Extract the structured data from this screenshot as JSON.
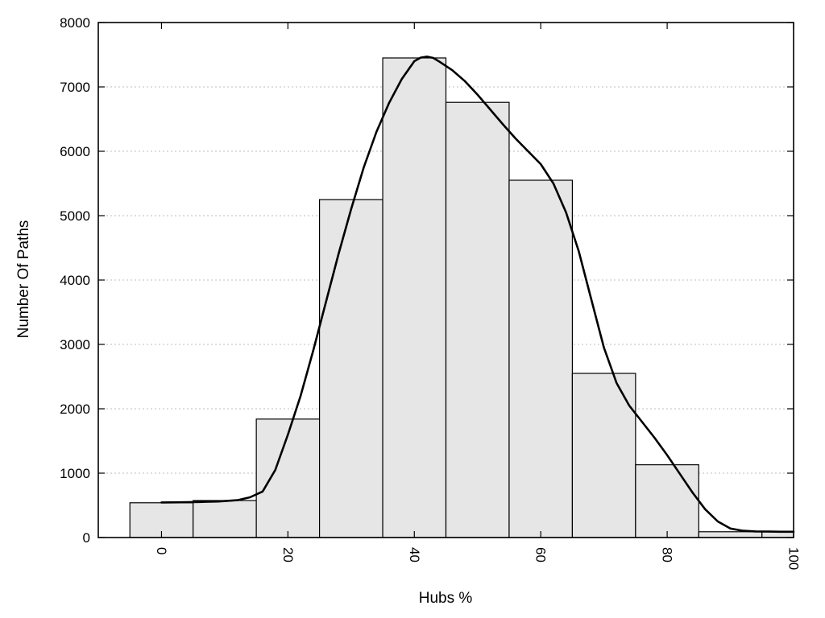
{
  "chart_data": {
    "type": "bar",
    "subtype": "histogram-with-density-curve",
    "title": "",
    "xlabel": "Hubs %",
    "ylabel": "Number Of Paths",
    "xlim": [
      -10,
      100
    ],
    "ylim": [
      0,
      8000
    ],
    "xticks": [
      0,
      20,
      40,
      60,
      80,
      100
    ],
    "yticks": [
      0,
      1000,
      2000,
      3000,
      4000,
      5000,
      6000,
      7000,
      8000
    ],
    "grid": "horizontal-dotted",
    "legend": "none",
    "colors": {
      "bar_fill": "#e6e6e6",
      "bar_stroke": "#000000",
      "curve": "#000000",
      "gridline": "#bdbdbd",
      "border": "#000000"
    },
    "bars": [
      {
        "x_start": -5,
        "x_end": 5,
        "value": 540
      },
      {
        "x_start": 5,
        "x_end": 15,
        "value": 575
      },
      {
        "x_start": 15,
        "x_end": 25,
        "value": 1840
      },
      {
        "x_start": 25,
        "x_end": 35,
        "value": 5250
      },
      {
        "x_start": 35,
        "x_end": 45,
        "value": 7450
      },
      {
        "x_start": 45,
        "x_end": 55,
        "value": 6760
      },
      {
        "x_start": 55,
        "x_end": 65,
        "value": 5550
      },
      {
        "x_start": 65,
        "x_end": 75,
        "value": 2550
      },
      {
        "x_start": 75,
        "x_end": 85,
        "value": 1130
      },
      {
        "x_start": 85,
        "x_end": 95,
        "value": 90
      },
      {
        "x_start": 95,
        "x_end": 105,
        "value": 90
      }
    ],
    "curve": [
      [
        0,
        545
      ],
      [
        3,
        548
      ],
      [
        6,
        553
      ],
      [
        9,
        560
      ],
      [
        12,
        580
      ],
      [
        14,
        625
      ],
      [
        16,
        715
      ],
      [
        18,
        1050
      ],
      [
        20,
        1600
      ],
      [
        22,
        2200
      ],
      [
        24,
        2900
      ],
      [
        26,
        3650
      ],
      [
        28,
        4400
      ],
      [
        30,
        5100
      ],
      [
        32,
        5750
      ],
      [
        34,
        6300
      ],
      [
        36,
        6750
      ],
      [
        38,
        7120
      ],
      [
        40,
        7400
      ],
      [
        41,
        7455
      ],
      [
        42,
        7470
      ],
      [
        43,
        7450
      ],
      [
        44,
        7390
      ],
      [
        46,
        7260
      ],
      [
        48,
        7090
      ],
      [
        50,
        6880
      ],
      [
        52,
        6650
      ],
      [
        54,
        6420
      ],
      [
        56,
        6200
      ],
      [
        58,
        6000
      ],
      [
        60,
        5800
      ],
      [
        62,
        5500
      ],
      [
        64,
        5050
      ],
      [
        66,
        4450
      ],
      [
        68,
        3700
      ],
      [
        70,
        2950
      ],
      [
        72,
        2400
      ],
      [
        74,
        2050
      ],
      [
        76,
        1800
      ],
      [
        78,
        1550
      ],
      [
        80,
        1280
      ],
      [
        82,
        990
      ],
      [
        84,
        700
      ],
      [
        86,
        440
      ],
      [
        88,
        250
      ],
      [
        90,
        140
      ],
      [
        92,
        105
      ],
      [
        94,
        95
      ],
      [
        96,
        92
      ],
      [
        98,
        90
      ],
      [
        100,
        90
      ]
    ]
  }
}
